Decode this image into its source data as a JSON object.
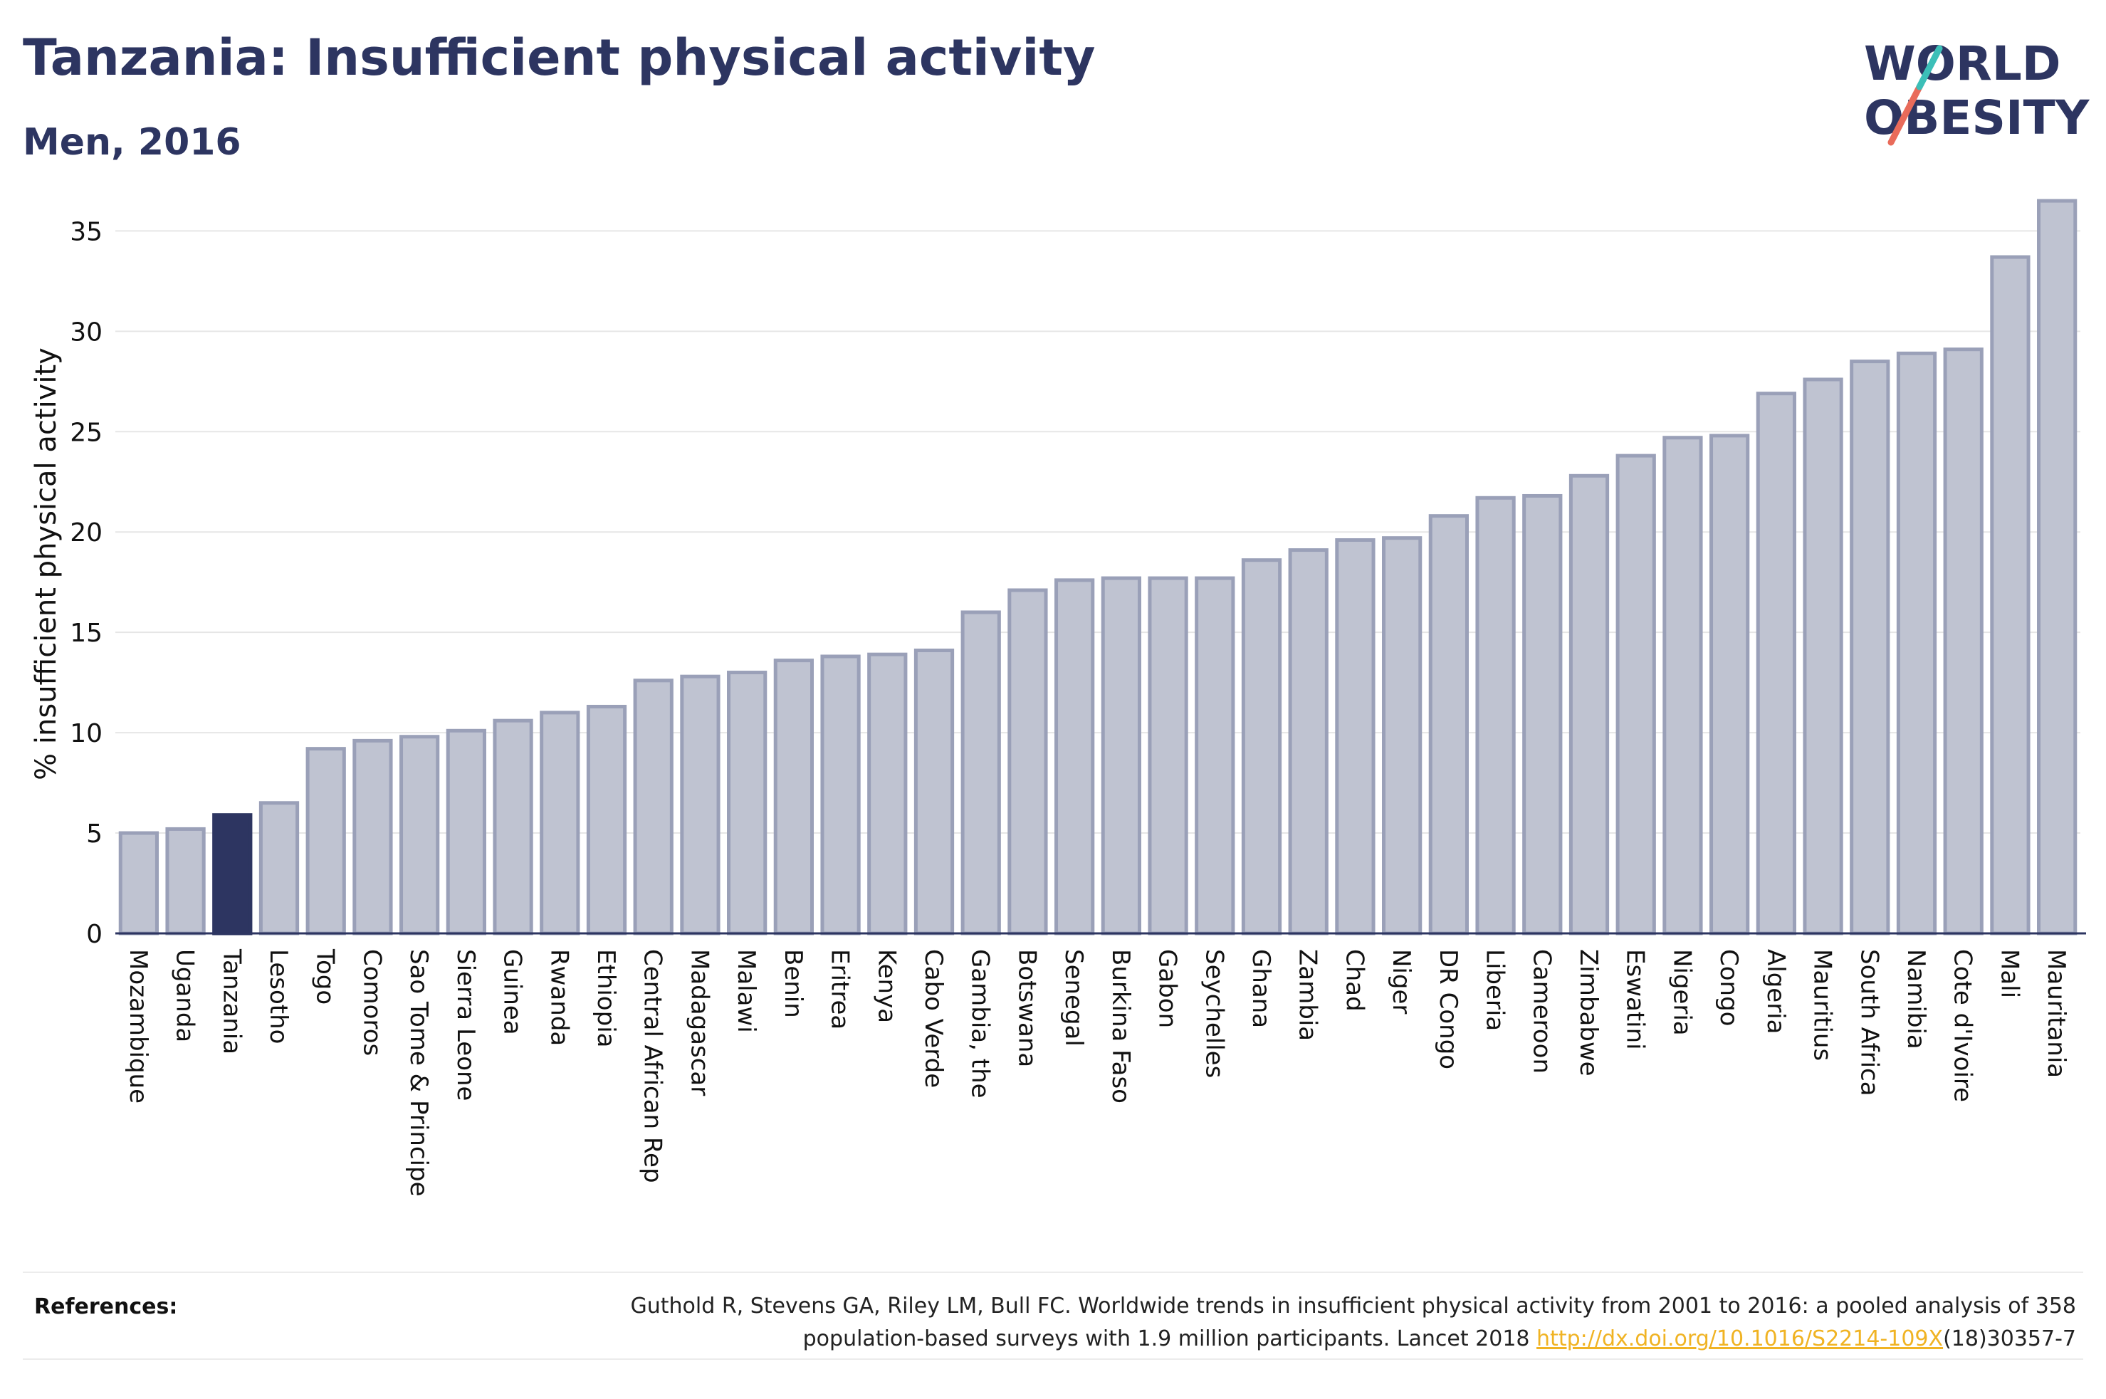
{
  "header": {
    "title": "Tanzania: Insufficient physical activity",
    "subtitle": "Men, 2016"
  },
  "logo": {
    "line1": "WORLD",
    "line2": "OBESITY",
    "slash_colors": [
      "#e96b5a",
      "#3cbfb8"
    ]
  },
  "colors": {
    "highlight": "#2d3561",
    "bar_fill": "#bfc3d1",
    "bar_stroke": "#9aa0b8",
    "grid": "#e6e6e6",
    "text": "#2d3561"
  },
  "chart_data": {
    "type": "bar",
    "title": "Tanzania: Insufficient physical activity",
    "subtitle": "Men, 2016",
    "xlabel": "",
    "ylabel": "% insufficient physical activity",
    "ylim": [
      0,
      37
    ],
    "yticks": [
      0,
      5,
      10,
      15,
      20,
      25,
      30,
      35
    ],
    "grid": true,
    "highlight": "Tanzania",
    "categories": [
      "Mozambique",
      "Uganda",
      "Tanzania",
      "Lesotho",
      "Togo",
      "Comoros",
      "Sao Tome & Principe",
      "Sierra Leone",
      "Guinea",
      "Rwanda",
      "Ethiopia",
      "Central African Rep",
      "Madagascar",
      "Malawi",
      "Benin",
      "Eritrea",
      "Kenya",
      "Cabo Verde",
      "Gambia, the",
      "Botswana",
      "Senegal",
      "Burkina Faso",
      "Gabon",
      "Seychelles",
      "Ghana",
      "Zambia",
      "Chad",
      "Niger",
      "DR Congo",
      "Liberia",
      "Cameroon",
      "Zimbabwe",
      "Eswatini",
      "Nigeria",
      "Congo",
      "Algeria",
      "Mauritius",
      "South Africa",
      "Namibia",
      "Cote d'Ivoire",
      "Mali",
      "Mauritania"
    ],
    "values": [
      5.0,
      5.2,
      5.9,
      6.5,
      9.2,
      9.6,
      9.8,
      10.1,
      10.6,
      11.0,
      11.3,
      12.6,
      12.8,
      13.0,
      13.6,
      13.8,
      13.9,
      14.1,
      16.0,
      17.1,
      17.6,
      17.7,
      17.7,
      17.7,
      18.6,
      19.1,
      19.6,
      19.7,
      20.8,
      21.7,
      21.8,
      22.8,
      23.8,
      24.7,
      24.8,
      26.9,
      27.6,
      28.5,
      28.9,
      29.1,
      33.7,
      36.5
    ]
  },
  "references": {
    "label": "References:",
    "text_before": "Guthold R, Stevens GA, Riley LM, Bull FC. Worldwide trends in insufficient physical activity from 2001 to 2016: a pooled analysis of 358 population-based surveys with 1.9 million participants. Lancet 2018 ",
    "link": "http://dx.doi.org/10.1016/S2214-109X",
    "text_after": "(18)30357-7"
  }
}
